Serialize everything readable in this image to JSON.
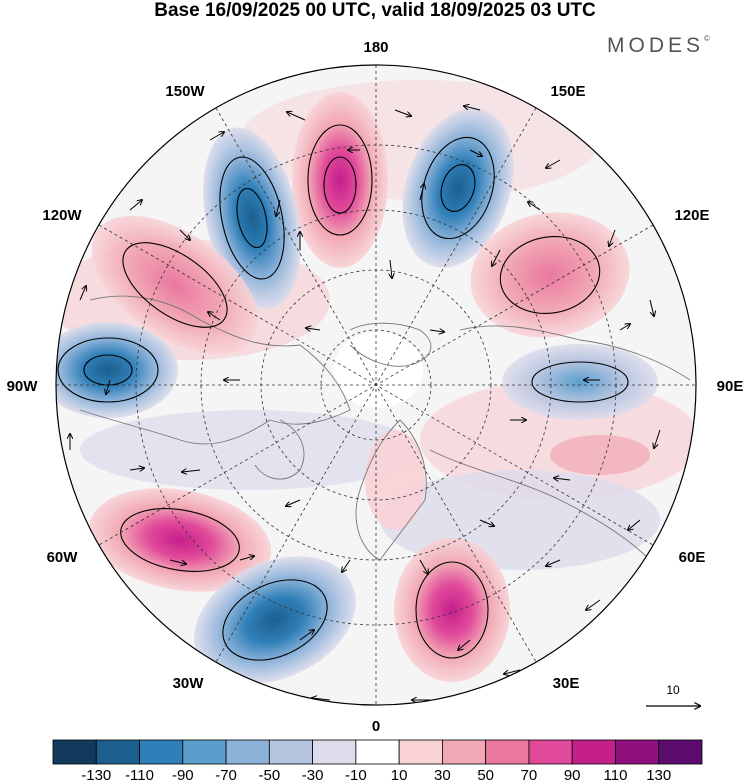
{
  "title": "Base 16/09/2025 00 UTC, valid 18/09/2025 03 UTC",
  "brand": "MODES",
  "brand_mark": "©",
  "longitude_labels": {
    "top": "180",
    "top_left": "150W",
    "top_right": "150E",
    "upper_left": "120W",
    "upper_right": "120E",
    "left": "90W",
    "right": "90E",
    "lower_left": "60W",
    "lower_right": "60E",
    "bottom_left": "30W",
    "bottom_right": "30E",
    "bottom": "0"
  },
  "vector_reference": {
    "label": "10"
  },
  "colorbar": {
    "tick_labels": [
      "-130",
      "-110",
      "-90",
      "-70",
      "-50",
      "-30",
      "-10",
      "10",
      "30",
      "50",
      "70",
      "90",
      "110",
      "130"
    ],
    "colors": [
      "#123a5c",
      "#1c5f8e",
      "#2f7fb8",
      "#5a9fcc",
      "#8cb2d9",
      "#b6c4e0",
      "#dcdcec",
      "#ffffff",
      "#f8d2d6",
      "#f1a7b4",
      "#ea77a0",
      "#e14a9a",
      "#c51f8c",
      "#8f0f7d",
      "#5b0c6e"
    ]
  },
  "colors": {
    "positive": "#e35ba0",
    "negative": "#3d86bb",
    "land": "#d9d9d9"
  }
}
